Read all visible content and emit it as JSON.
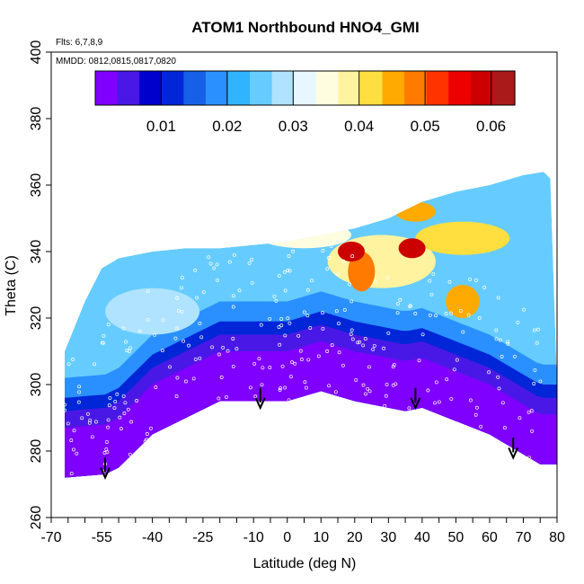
{
  "chart_data": {
    "type": "heatmap",
    "title": "ATOM1 Northbound HNO4_GMI",
    "annotations": [
      "Flts: 6,7,8,9",
      "MMDD: 0812,0815,0817,0820"
    ],
    "xlabel": "Latitude (deg N)",
    "ylabel": "Theta (C)",
    "xlim": [
      -70,
      80
    ],
    "ylim": [
      260,
      400
    ],
    "x_ticks": [
      -70,
      -55,
      -40,
      -25,
      -10,
      0,
      10,
      20,
      30,
      40,
      50,
      60,
      70,
      80
    ],
    "x_minor_step": 5,
    "y_ticks": [
      260,
      280,
      300,
      320,
      340,
      360,
      380,
      400
    ],
    "colorbar": {
      "min": 0,
      "max": 0.0636,
      "ticks": [
        0.01,
        0.02,
        0.03,
        0.04,
        0.05,
        0.06
      ],
      "tick_labels": [
        "0.01",
        "0.02",
        "0.03",
        "0.04",
        "0.05",
        "0.06"
      ],
      "colors": [
        "#7f00ff",
        "#4a18e6",
        "#0000cd",
        "#0026d8",
        "#1560e6",
        "#2a90ff",
        "#30b4ff",
        "#66ccff",
        "#b0e3ff",
        "#e8f6ff",
        "#fffde0",
        "#fff3a0",
        "#ffde40",
        "#ffaa00",
        "#ff7a00",
        "#ff3300",
        "#ee0000",
        "#cc0000",
        "#aa1a1a"
      ]
    },
    "arrows": [
      {
        "lat": -54,
        "theta": 278
      },
      {
        "lat": -8,
        "theta": 299
      },
      {
        "lat": 38,
        "theta": 299
      },
      {
        "lat": 67,
        "theta": 284
      }
    ],
    "data_envelope": {
      "lower": [
        [
          -66,
          272
        ],
        [
          -54,
          273
        ],
        [
          -50,
          275
        ],
        [
          -40,
          285
        ],
        [
          -30,
          290
        ],
        [
          -20,
          295
        ],
        [
          -10,
          295
        ],
        [
          -4,
          295
        ],
        [
          0,
          295
        ],
        [
          10,
          298
        ],
        [
          20,
          295
        ],
        [
          30,
          293
        ],
        [
          35,
          292
        ],
        [
          40,
          293
        ],
        [
          50,
          289
        ],
        [
          60,
          285
        ],
        [
          70,
          279
        ],
        [
          75,
          276
        ],
        [
          80,
          276
        ]
      ],
      "upper": [
        [
          -66,
          310
        ],
        [
          -60,
          325
        ],
        [
          -55,
          335
        ],
        [
          -50,
          338
        ],
        [
          -40,
          340
        ],
        [
          -30,
          341
        ],
        [
          -20,
          341
        ],
        [
          -10,
          342
        ],
        [
          0,
          343
        ],
        [
          10,
          345
        ],
        [
          20,
          347
        ],
        [
          30,
          350
        ],
        [
          40,
          355
        ],
        [
          50,
          358
        ],
        [
          60,
          360
        ],
        [
          70,
          363
        ],
        [
          76,
          364
        ],
        [
          78,
          362
        ],
        [
          80,
          300
        ]
      ]
    },
    "regions": [
      {
        "shape": "band",
        "value": 0.0005,
        "offset_theta": [
          0,
          15
        ]
      },
      {
        "shape": "band",
        "value": 0.005,
        "offset_theta": [
          15,
          20
        ]
      },
      {
        "shape": "band",
        "value": 0.012,
        "offset_theta": [
          20,
          24
        ]
      },
      {
        "shape": "band",
        "value": 0.02,
        "offset_theta": [
          24,
          30
        ]
      },
      {
        "shape": "ellipse",
        "value": 0.028,
        "lat": -40,
        "theta": 322,
        "rlat": 14,
        "rtheta": 7
      },
      {
        "shape": "ellipse",
        "value": 0.034,
        "lat": 5,
        "theta": 345,
        "rlat": 14,
        "rtheta": 4
      },
      {
        "shape": "ellipse",
        "value": 0.038,
        "lat": 28,
        "theta": 337,
        "rlat": 16,
        "rtheta": 8
      },
      {
        "shape": "ellipse",
        "value": 0.042,
        "lat": 52,
        "theta": 344,
        "rlat": 14,
        "rtheta": 5
      },
      {
        "shape": "ellipse",
        "value": 0.044,
        "lat": 52,
        "theta": 325,
        "rlat": 5,
        "rtheta": 5
      },
      {
        "shape": "ellipse",
        "value": 0.045,
        "lat": 38,
        "theta": 352,
        "rlat": 6,
        "rtheta": 3
      },
      {
        "shape": "ellipse",
        "value": 0.05,
        "lat": 22,
        "theta": 334,
        "rlat": 4,
        "rtheta": 6
      },
      {
        "shape": "ellipse",
        "value": 0.058,
        "lat": 19,
        "theta": 340,
        "rlat": 4,
        "rtheta": 3
      },
      {
        "shape": "ellipse",
        "value": 0.058,
        "lat": 37,
        "theta": 341,
        "rlat": 4,
        "rtheta": 3
      }
    ]
  }
}
